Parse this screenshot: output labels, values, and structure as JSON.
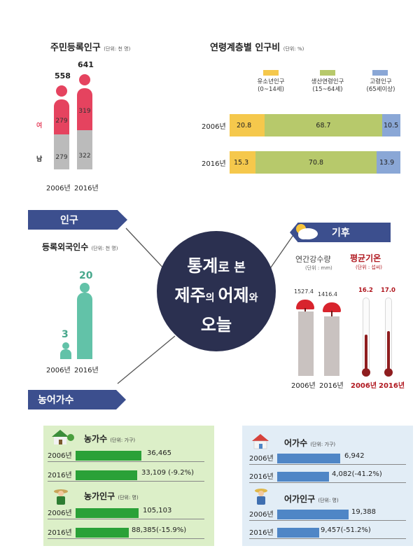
{
  "population": {
    "title": "주민등록인구",
    "unit": "(단위: 천 명)",
    "female_label": "여",
    "male_label": "남",
    "years": [
      "2006년",
      "2016년"
    ],
    "totals": [
      "558",
      "641"
    ],
    "female": [
      "279",
      "319"
    ],
    "male": [
      "279",
      "322"
    ]
  },
  "age_ratio": {
    "title": "연령계층별 인구비",
    "unit": "(단위: %)",
    "legend": [
      {
        "name": "유소년인구\n(0~14세)",
        "color": "#f5c84c"
      },
      {
        "name": "생산연령인구\n(15~64세)",
        "color": "#b7c96b"
      },
      {
        "name": "고령인구\n(65세이상)",
        "color": "#8aa7d6"
      }
    ],
    "rows": [
      {
        "year": "2006년",
        "values": [
          "20.8",
          "68.7",
          "10.5"
        ]
      },
      {
        "year": "2016년",
        "values": [
          "15.3",
          "70.8",
          "13.9"
        ]
      }
    ]
  },
  "ribbons": {
    "population": "인구",
    "climate": "기후",
    "households": "농어가수"
  },
  "hub": {
    "line1_a": "통계",
    "line1_b": "로 본",
    "line2_a": "제주",
    "line2_b": "의 ",
    "line2_c": "어제",
    "line2_d": "와",
    "line3": "오늘"
  },
  "foreigners": {
    "title": "등록외국인수",
    "unit": "(단위: 천 명)",
    "values": [
      "3",
      "20"
    ],
    "years": [
      "2006년",
      "2016년"
    ]
  },
  "climate": {
    "rain_title": "연간강수량",
    "rain_unit": "(단위 : mm)",
    "rain_values": [
      "1527.4",
      "1416.4"
    ],
    "temp_title": "평균기온",
    "temp_unit": "(단위 : 섭씨)",
    "temp_values": [
      "16.2",
      "17.0"
    ],
    "years": [
      "2006년",
      "2016년"
    ]
  },
  "farm": {
    "households_title": "농가수",
    "households_unit": "(단위: 가구)",
    "households": [
      {
        "year": "2006년",
        "value": "36,465"
      },
      {
        "year": "2016년",
        "value": "33,109 (-9.2%)"
      }
    ],
    "pop_title": "농가인구",
    "pop_unit": "(단위: 명)",
    "population": [
      {
        "year": "2006년",
        "value": "105,103"
      },
      {
        "year": "2016년",
        "value": "88,385(-15.9%)"
      }
    ]
  },
  "fish": {
    "households_title": "어가수",
    "households_unit": "(단위: 가구)",
    "households": [
      {
        "year": "2006년",
        "value": "6,942"
      },
      {
        "year": "2016년",
        "value": "4,082(-41.2%)"
      }
    ],
    "pop_title": "어가인구",
    "pop_unit": "(단위: 명)",
    "population": [
      {
        "year": "2006년",
        "value": "19,388"
      },
      {
        "year": "2016년",
        "value": "9,457(-51.2%)"
      }
    ]
  },
  "chart_data": [
    {
      "type": "bar",
      "title": "주민등록인구",
      "categories": [
        "2006년",
        "2016년"
      ],
      "series": [
        {
          "name": "여",
          "values": [
            279,
            319
          ]
        },
        {
          "name": "남",
          "values": [
            279,
            322
          ]
        }
      ],
      "totals": [
        558,
        641
      ]
    },
    {
      "type": "bar",
      "title": "연령계층별 인구비",
      "categories": [
        "2006년",
        "2016년"
      ],
      "series": [
        {
          "name": "유소년인구 (0~14세)",
          "values": [
            20.8,
            15.3
          ]
        },
        {
          "name": "생산연령인구 (15~64세)",
          "values": [
            68.7,
            70.8
          ]
        },
        {
          "name": "고령인구 (65세이상)",
          "values": [
            10.5,
            13.9
          ]
        }
      ]
    },
    {
      "type": "bar",
      "title": "등록외국인수",
      "categories": [
        "2006년",
        "2016년"
      ],
      "values": [
        3,
        20
      ]
    },
    {
      "type": "bar",
      "title": "연간강수량",
      "categories": [
        "2006년",
        "2016년"
      ],
      "values": [
        1527.4,
        1416.4
      ]
    },
    {
      "type": "bar",
      "title": "평균기온",
      "categories": [
        "2006년",
        "2016년"
      ],
      "values": [
        16.2,
        17.0
      ]
    },
    {
      "type": "bar",
      "title": "농가수",
      "categories": [
        "2006년",
        "2016년"
      ],
      "values": [
        36465,
        33109
      ]
    },
    {
      "type": "bar",
      "title": "농가인구",
      "categories": [
        "2006년",
        "2016년"
      ],
      "values": [
        105103,
        88385
      ]
    },
    {
      "type": "bar",
      "title": "어가수",
      "categories": [
        "2006년",
        "2016년"
      ],
      "values": [
        6942,
        4082
      ]
    },
    {
      "type": "bar",
      "title": "어가인구",
      "categories": [
        "2006년",
        "2016년"
      ],
      "values": [
        19388,
        9457
      ]
    }
  ]
}
